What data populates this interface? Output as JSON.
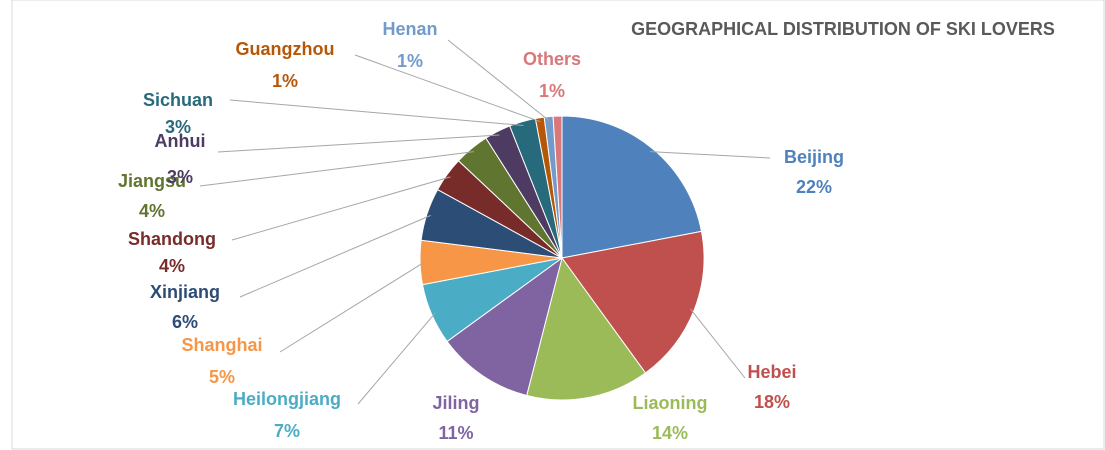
{
  "chart_data": {
    "type": "pie",
    "title": "GEOGRAPHICAL DISTRIBUTION OF SKI LOVERS",
    "categories": [
      "Beijing",
      "Hebei",
      "Liaoning",
      "Jiling",
      "Heilongjiang",
      "Shanghai",
      "Xinjiang",
      "Shandong",
      "Jiangsu",
      "Anhui",
      "Sichuan",
      "Guangzhou",
      "Henan",
      "Others"
    ],
    "values": [
      22,
      18,
      14,
      11,
      7,
      5,
      6,
      4,
      4,
      3,
      3,
      1,
      1,
      1
    ],
    "value_labels": [
      "22%",
      "18%",
      "14%",
      "11%",
      "7%",
      "5%",
      "6%",
      "4%",
      "4%",
      "3%",
      "3%",
      "1%",
      "1%",
      "1%"
    ],
    "colors": [
      "#4f81bd",
      "#c0504d",
      "#9bbb59",
      "#8064a2",
      "#4bacc6",
      "#f79646",
      "#2c4d75",
      "#772c2a",
      "#5f7530",
      "#4d3b62",
      "#276a7c",
      "#b65708",
      "#729aca",
      "#d9777a"
    ]
  }
}
